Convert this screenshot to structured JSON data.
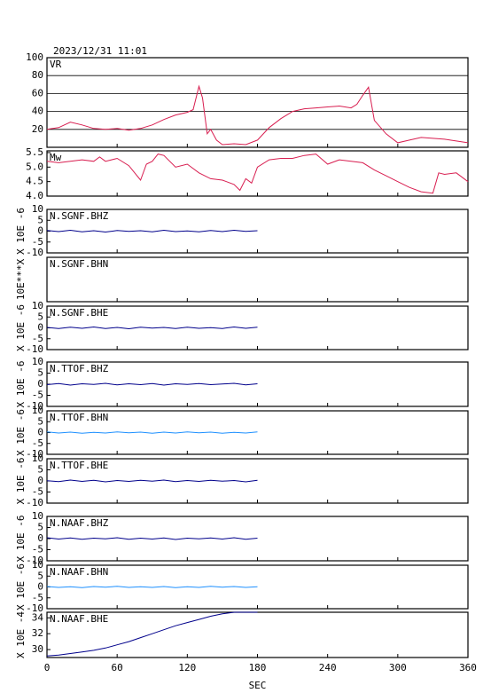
{
  "chart_data": [
    {
      "type": "line",
      "title": "2023/12/31 11:01",
      "label": "VR",
      "ylim": [
        0,
        100
      ],
      "yticks": [
        20,
        40,
        60,
        80,
        100
      ],
      "grid": true,
      "x": [
        0,
        10,
        20,
        30,
        40,
        50,
        60,
        70,
        80,
        90,
        100,
        110,
        120,
        125,
        130,
        133,
        137,
        140,
        145,
        150,
        160,
        170,
        180,
        190,
        200,
        210,
        220,
        230,
        240,
        250,
        260,
        265,
        270,
        275,
        280,
        290,
        300,
        310,
        320,
        330,
        340,
        350,
        360
      ],
      "series": [
        {
          "color": "#d81e50",
          "values": [
            20,
            22,
            28,
            25,
            21,
            20,
            21,
            19,
            21,
            25,
            31,
            36,
            39,
            42,
            68,
            55,
            15,
            20,
            8,
            3,
            4,
            3,
            8,
            22,
            32,
            40,
            43,
            44,
            45,
            46,
            44,
            48,
            58,
            67,
            30,
            15,
            5,
            8,
            11,
            10,
            9,
            7,
            5
          ]
        }
      ]
    },
    {
      "type": "line",
      "label": "Mw",
      "ylim": [
        4.0,
        5.56
      ],
      "yticks": [
        {
          "value": 4.0,
          "label": "4.0"
        },
        {
          "value": 4.5,
          "label": "4.5"
        },
        {
          "value": 5.0,
          "label": "5.0"
        },
        5.5
      ],
      "grid": false,
      "x": [
        0,
        10,
        20,
        30,
        40,
        45,
        50,
        60,
        70,
        80,
        85,
        90,
        95,
        100,
        110,
        120,
        130,
        140,
        150,
        160,
        165,
        170,
        175,
        180,
        190,
        200,
        210,
        220,
        230,
        240,
        250,
        260,
        270,
        280,
        290,
        300,
        310,
        320,
        330,
        335,
        340,
        350,
        360
      ],
      "series": [
        {
          "color": "#d81e50",
          "values": [
            5.2,
            5.15,
            5.2,
            5.25,
            5.2,
            5.35,
            5.2,
            5.3,
            5.05,
            4.55,
            5.1,
            5.2,
            5.45,
            5.4,
            5.0,
            5.1,
            4.8,
            4.6,
            4.55,
            4.4,
            4.2,
            4.6,
            4.45,
            5.0,
            5.25,
            5.3,
            5.3,
            5.4,
            5.45,
            5.1,
            5.25,
            5.2,
            5.15,
            4.9,
            4.7,
            4.5,
            4.3,
            4.15,
            4.1,
            4.8,
            4.75,
            4.8,
            4.5
          ]
        }
      ]
    },
    {
      "type": "line",
      "label": "N.SGNF.BHZ",
      "ylabel": "X 10E -6",
      "ylim": [
        -10,
        10
      ],
      "yticks": [
        -10,
        -5,
        0,
        5,
        10
      ],
      "x": [
        0,
        10,
        20,
        30,
        40,
        50,
        60,
        70,
        80,
        90,
        100,
        110,
        120,
        130,
        140,
        150,
        160,
        170,
        180
      ],
      "series": [
        {
          "color": "#00008b",
          "values": [
            0.3,
            -0.2,
            0.4,
            -0.3,
            0.2,
            -0.4,
            0.3,
            -0.1,
            0.2,
            -0.3,
            0.4,
            -0.2,
            0.1,
            -0.3,
            0.3,
            -0.2,
            0.4,
            -0.1,
            0.2
          ]
        }
      ]
    },
    {
      "type": "line",
      "label": "N.SGNF.BHN",
      "ylabel": "10E***X"
    },
    {
      "type": "line",
      "label": "N.SGNF.BHE",
      "ylabel": "X 10E -6",
      "ylim": [
        -10,
        10
      ],
      "yticks": [
        -10,
        -5,
        0,
        5,
        10
      ],
      "x": [
        0,
        10,
        20,
        30,
        40,
        50,
        60,
        70,
        80,
        90,
        100,
        110,
        120,
        130,
        140,
        150,
        160,
        170,
        180
      ],
      "series": [
        {
          "color": "#00008b",
          "values": [
            0.2,
            -0.3,
            0.3,
            -0.2,
            0.4,
            -0.3,
            0.2,
            -0.4,
            0.3,
            -0.1,
            0.2,
            -0.3,
            0.3,
            -0.2,
            0.1,
            -0.3,
            0.4,
            -0.2,
            0.3
          ]
        }
      ]
    },
    {
      "type": "line",
      "label": "N.TTOF.BHZ",
      "ylabel": "X 10E -6",
      "ylim": [
        -10,
        10
      ],
      "yticks": [
        -10,
        -5,
        0,
        5,
        10
      ],
      "x": [
        0,
        10,
        20,
        30,
        40,
        50,
        60,
        70,
        80,
        90,
        100,
        110,
        120,
        130,
        140,
        150,
        160,
        170,
        180
      ],
      "series": [
        {
          "color": "#00008b",
          "values": [
            -0.2,
            0.3,
            -0.4,
            0.2,
            -0.1,
            0.4,
            -0.3,
            0.2,
            -0.2,
            0.3,
            -0.4,
            0.2,
            -0.1,
            0.3,
            -0.2,
            0.1,
            0.4,
            -0.3,
            0.2
          ]
        }
      ]
    },
    {
      "type": "line",
      "label": "N.TTOF.BHN",
      "ylabel": "X 10E -6",
      "ylim": [
        -10,
        10
      ],
      "yticks": [
        -10,
        -5,
        0,
        5,
        10
      ],
      "x": [
        0,
        10,
        20,
        30,
        40,
        50,
        60,
        70,
        80,
        90,
        100,
        110,
        120,
        130,
        140,
        150,
        160,
        170,
        180
      ],
      "series": [
        {
          "color": "#1e90ff",
          "values": [
            0.3,
            -0.2,
            0.2,
            -0.3,
            0.1,
            -0.2,
            0.3,
            -0.1,
            0.2,
            -0.3,
            0.2,
            -0.2,
            0.3,
            -0.1,
            0.2,
            -0.3,
            0.1,
            -0.2,
            0.3
          ]
        }
      ]
    },
    {
      "type": "line",
      "label": "N.TTOF.BHE",
      "ylabel": "X 10E -6",
      "ylim": [
        -10,
        10
      ],
      "yticks": [
        -10,
        -5,
        0,
        5,
        10
      ],
      "x": [
        0,
        10,
        20,
        30,
        40,
        50,
        60,
        70,
        80,
        90,
        100,
        110,
        120,
        130,
        140,
        150,
        160,
        170,
        180
      ],
      "series": [
        {
          "color": "#00008b",
          "values": [
            0.1,
            -0.3,
            0.4,
            -0.2,
            0.3,
            -0.4,
            0.2,
            -0.2,
            0.3,
            -0.1,
            0.4,
            -0.3,
            0.2,
            -0.2,
            0.3,
            -0.1,
            0.2,
            -0.4,
            0.3
          ]
        }
      ]
    },
    {
      "type": "line",
      "label": "N.NAAF.BHZ",
      "ylabel": "X 10E -6",
      "ylim": [
        -10,
        10
      ],
      "yticks": [
        -10,
        -5,
        0,
        5,
        10
      ],
      "x": [
        0,
        10,
        20,
        30,
        40,
        50,
        60,
        70,
        80,
        90,
        100,
        110,
        120,
        130,
        140,
        150,
        160,
        170,
        180
      ],
      "series": [
        {
          "color": "#00008b",
          "values": [
            0.4,
            -0.2,
            0.3,
            -0.3,
            0.2,
            -0.1,
            0.4,
            -0.3,
            0.2,
            -0.2,
            0.3,
            -0.4,
            0.2,
            -0.1,
            0.3,
            -0.2,
            0.4,
            -0.3,
            0.2
          ]
        }
      ]
    },
    {
      "type": "line",
      "label": "N.NAAF.BHN",
      "ylabel": "X 10E -6",
      "ylim": [
        -10,
        10
      ],
      "yticks": [
        -10,
        -5,
        0,
        5,
        10
      ],
      "x": [
        0,
        10,
        20,
        30,
        40,
        50,
        60,
        70,
        80,
        90,
        100,
        110,
        120,
        130,
        140,
        150,
        160,
        170,
        180
      ],
      "series": [
        {
          "color": "#1e90ff",
          "values": [
            0.2,
            -0.2,
            0.1,
            -0.3,
            0.2,
            -0.1,
            0.3,
            -0.2,
            0.1,
            -0.2,
            0.2,
            -0.3,
            0.1,
            -0.2,
            0.3,
            -0.1,
            0.2,
            -0.2,
            0.1
          ]
        }
      ]
    },
    {
      "type": "line",
      "label": "N.NAAF.BHE",
      "ylabel": "X 10E -4",
      "ylim": [
        29,
        34.7
      ],
      "yticks": [
        30,
        32,
        34
      ],
      "xlim": [
        0,
        360
      ],
      "xticks": [
        0,
        60,
        120,
        180,
        240,
        300,
        360
      ],
      "xlabel": "SEC",
      "x": [
        0,
        10,
        20,
        30,
        40,
        50,
        60,
        70,
        80,
        90,
        100,
        110,
        120,
        130,
        140,
        150,
        160,
        170,
        180
      ],
      "series": [
        {
          "color": "#00008b",
          "values": [
            29.2,
            29.3,
            29.5,
            29.7,
            29.9,
            30.2,
            30.6,
            31.0,
            31.5,
            32.0,
            32.5,
            33.0,
            33.4,
            33.8,
            34.2,
            34.5,
            34.7,
            34.7,
            34.7
          ]
        }
      ]
    }
  ]
}
